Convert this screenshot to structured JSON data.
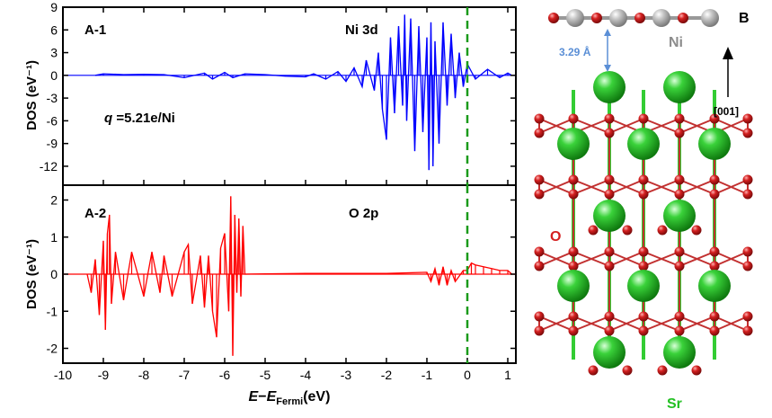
{
  "chart_data": [
    {
      "panel_label": "A-1",
      "type": "area",
      "series_label": "Ni 3d",
      "annotation": "5.21e/Ni",
      "annotation_symbol": "q",
      "ylabel": "DOS (eV⁻¹)",
      "ylim": [
        -14.5,
        9
      ],
      "yticks": [
        -12,
        -9,
        -6,
        -3,
        0,
        3,
        6,
        9
      ],
      "color": "#0000ff",
      "points": [
        [
          -9.2,
          0
        ],
        [
          -9.0,
          0.2
        ],
        [
          -8.5,
          0.1
        ],
        [
          -8.0,
          0.15
        ],
        [
          -7.5,
          0.1
        ],
        [
          -7.0,
          -0.3
        ],
        [
          -6.5,
          0.3
        ],
        [
          -6.3,
          -0.5
        ],
        [
          -6.0,
          0.4
        ],
        [
          -5.8,
          -0.3
        ],
        [
          -5.5,
          0.2
        ],
        [
          -5.0,
          0.1
        ],
        [
          -4.5,
          -0.1
        ],
        [
          -4.0,
          -0.2
        ],
        [
          -3.8,
          0.2
        ],
        [
          -3.5,
          -0.5
        ],
        [
          -3.2,
          0.5
        ],
        [
          -3.0,
          -0.8
        ],
        [
          -2.8,
          1.0
        ],
        [
          -2.6,
          -1.5
        ],
        [
          -2.5,
          2.0
        ],
        [
          -2.3,
          -2.0
        ],
        [
          -2.2,
          3.0
        ],
        [
          -2.1,
          -4.5
        ],
        [
          -2.0,
          -8.5
        ],
        [
          -1.9,
          5.0
        ],
        [
          -1.8,
          -5.0
        ],
        [
          -1.7,
          6.5
        ],
        [
          -1.6,
          -4.0
        ],
        [
          -1.55,
          8.0
        ],
        [
          -1.5,
          -6.0
        ],
        [
          -1.4,
          7.5
        ],
        [
          -1.3,
          -10.0
        ],
        [
          -1.2,
          6.5
        ],
        [
          -1.1,
          -7.5
        ],
        [
          -1.0,
          5.0
        ],
        [
          -0.95,
          -12.5
        ],
        [
          -0.9,
          7.0
        ],
        [
          -0.85,
          -12.0
        ],
        [
          -0.8,
          4.5
        ],
        [
          -0.7,
          -9.0
        ],
        [
          -0.6,
          7.0
        ],
        [
          -0.5,
          -4.0
        ],
        [
          -0.4,
          5.5
        ],
        [
          -0.3,
          -3.0
        ],
        [
          -0.2,
          3.0
        ],
        [
          -0.1,
          -1.5
        ],
        [
          0.0,
          1.5
        ],
        [
          0.2,
          -0.5
        ],
        [
          0.5,
          0.8
        ],
        [
          0.8,
          -0.3
        ],
        [
          1.0,
          0.3
        ],
        [
          1.1,
          0
        ]
      ]
    },
    {
      "panel_label": "A-2",
      "type": "area",
      "series_label": "O 2p",
      "ylabel": "DOS (eV⁻¹)",
      "ylim": [
        -2.4,
        2.4
      ],
      "yticks": [
        -2,
        -1,
        0,
        1,
        2
      ],
      "color": "#ff0000",
      "xlabel": "E−E_Fermi(eV)",
      "xlim": [
        -10,
        1.2
      ],
      "xticks": [
        -10,
        -9,
        -8,
        -7,
        -6,
        -5,
        -4,
        -3,
        -2,
        -1,
        0,
        1
      ],
      "fermi_level": 0,
      "points": [
        [
          -9.4,
          0
        ],
        [
          -9.3,
          -0.5
        ],
        [
          -9.2,
          0.4
        ],
        [
          -9.1,
          -1.1
        ],
        [
          -9.0,
          0.9
        ],
        [
          -8.95,
          -1.5
        ],
        [
          -8.9,
          1.1
        ],
        [
          -8.85,
          1.6
        ],
        [
          -8.8,
          -0.8
        ],
        [
          -8.7,
          0.6
        ],
        [
          -8.5,
          -0.7
        ],
        [
          -8.3,
          0.6
        ],
        [
          -8.0,
          -0.6
        ],
        [
          -7.8,
          0.6
        ],
        [
          -7.6,
          -0.5
        ],
        [
          -7.5,
          0.5
        ],
        [
          -7.3,
          -0.6
        ],
        [
          -7.0,
          0.6
        ],
        [
          -6.9,
          0.8
        ],
        [
          -6.8,
          -0.8
        ],
        [
          -6.6,
          0.5
        ],
        [
          -6.5,
          -0.9
        ],
        [
          -6.4,
          0.5
        ],
        [
          -6.3,
          -1.0
        ],
        [
          -6.2,
          -1.7
        ],
        [
          -6.1,
          0.7
        ],
        [
          -6.0,
          1.1
        ],
        [
          -5.9,
          -1.0
        ],
        [
          -5.85,
          2.1
        ],
        [
          -5.8,
          -2.2
        ],
        [
          -5.75,
          1.6
        ],
        [
          -5.7,
          -0.5
        ],
        [
          -5.65,
          1.5
        ],
        [
          -5.6,
          -0.6
        ],
        [
          -5.55,
          1.3
        ],
        [
          -5.5,
          0
        ],
        [
          -5.0,
          0.01
        ],
        [
          -4.0,
          0.02
        ],
        [
          -3.0,
          0.02
        ],
        [
          -2.0,
          0.02
        ],
        [
          -1.0,
          0.05
        ],
        [
          -0.9,
          -0.2
        ],
        [
          -0.8,
          0.15
        ],
        [
          -0.7,
          -0.3
        ],
        [
          -0.6,
          0.2
        ],
        [
          -0.5,
          -0.3
        ],
        [
          -0.4,
          0.1
        ],
        [
          -0.3,
          -0.2
        ],
        [
          -0.1,
          0.1
        ],
        [
          0.0,
          0.1
        ],
        [
          0.1,
          0.3
        ],
        [
          0.2,
          0.25
        ],
        [
          0.4,
          0.2
        ],
        [
          0.6,
          0.15
        ],
        [
          0.8,
          0.1
        ],
        [
          1.0,
          0.1
        ],
        [
          1.1,
          0
        ]
      ]
    }
  ],
  "structure": {
    "panel_label": "B",
    "ni_label": "Ni",
    "o_label": "O",
    "sr_label": "Sr",
    "distance_label": "3.29 Å",
    "direction_label": "[001]",
    "colors": {
      "sr": "#22c022",
      "o": "#d42020",
      "ni": "#b8b8b8",
      "bond_green": "#33cc33",
      "distance": "#5b8fd6",
      "ni_text": "#8c8c8c"
    }
  }
}
